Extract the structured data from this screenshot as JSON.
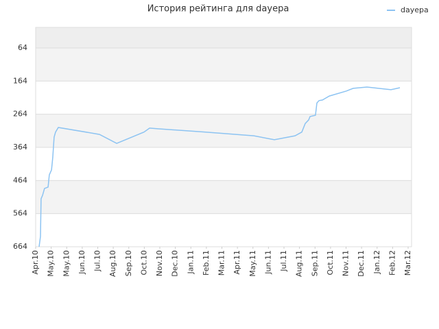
{
  "chart_data": {
    "type": "line",
    "title": "История рейтинга для dayepa",
    "series": [
      {
        "name": "dayepa",
        "color": "#8cc3f2",
        "x": [
          0.22,
          0.31,
          0.35,
          0.44,
          0.57,
          0.8,
          0.88,
          1.02,
          1.1,
          1.19,
          1.28,
          1.46,
          3.89,
          4.11,
          5.22,
          6.98,
          7.34,
          7.87,
          10.96,
          14.06,
          15.38,
          16.71,
          17.15,
          17.37,
          17.59,
          17.68,
          18.03,
          18.12,
          18.26,
          18.48,
          18.92,
          20.02,
          20.46,
          21.35,
          22.89,
          23.47
        ],
        "values": [
          664,
          633,
          519,
          509,
          488,
          484,
          447,
          432,
          395,
          333,
          318,
          304,
          323,
          325,
          352,
          318,
          306,
          308,
          318,
          329,
          341,
          329,
          318,
          292,
          281,
          271,
          267,
          230,
          223,
          221,
          209,
          194,
          186,
          182,
          190,
          184
        ]
      }
    ],
    "ylim": [
      664,
      2
    ],
    "yticks": [
      64,
      164,
      264,
      364,
      464,
      564,
      664
    ],
    "xlim": [
      0,
      24
    ],
    "xticks": [
      {
        "value": 0,
        "label": "Apr.10"
      },
      {
        "value": 1,
        "label": "May.10"
      },
      {
        "value": 2,
        "label": "May.10"
      },
      {
        "value": 3,
        "label": "Jun.10"
      },
      {
        "value": 4,
        "label": "Jul.10"
      },
      {
        "value": 5,
        "label": "Aug.10"
      },
      {
        "value": 6,
        "label": "Sep.10"
      },
      {
        "value": 7,
        "label": "Oct.10"
      },
      {
        "value": 8,
        "label": "Nov.10"
      },
      {
        "value": 9,
        "label": "Dec.10"
      },
      {
        "value": 10,
        "label": "Jan.11"
      },
      {
        "value": 11,
        "label": "Feb.11"
      },
      {
        "value": 12,
        "label": "Mar.11"
      },
      {
        "value": 13,
        "label": "Apr.11"
      },
      {
        "value": 14,
        "label": "May.11"
      },
      {
        "value": 15,
        "label": "Jun.11"
      },
      {
        "value": 16,
        "label": "Jul.11"
      },
      {
        "value": 17,
        "label": "Aug.11"
      },
      {
        "value": 18,
        "label": "Sep.11"
      },
      {
        "value": 19,
        "label": "Oct.11"
      },
      {
        "value": 20,
        "label": "Nov.11"
      },
      {
        "value": 21,
        "label": "Dec.11"
      },
      {
        "value": 22,
        "label": "Jan.12"
      },
      {
        "value": 23,
        "label": "Feb.12"
      },
      {
        "value": 24,
        "label": "Mar.12"
      }
    ],
    "grid": true,
    "legend": "top-right"
  }
}
